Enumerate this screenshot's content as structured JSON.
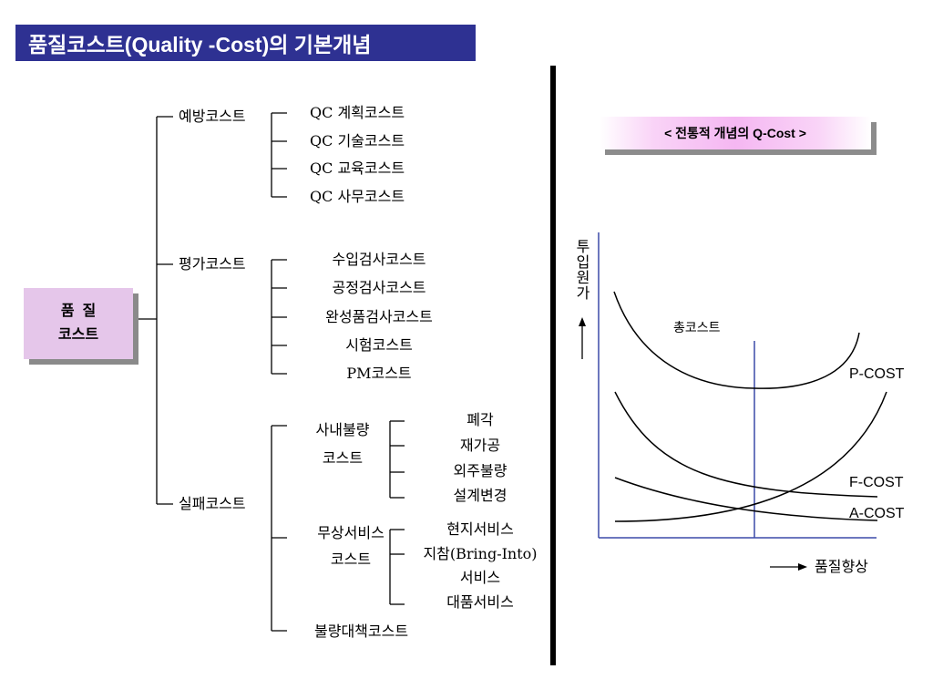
{
  "title": "품질코스트(Quality -Cost)의 기본개념",
  "tree": {
    "root": {
      "line1": "품  질",
      "line2": "코스트"
    },
    "prevention": {
      "label": "예방코스트",
      "items": [
        "QC 계획코스트",
        "QC 기술코스트",
        "QC 교육코스트",
        "QC 사무코스트"
      ]
    },
    "appraisal": {
      "label": "평가코스트",
      "items": [
        "수입검사코스트",
        "공정검사코스트",
        "완성품검사코스트",
        "시험코스트",
        "PM코스트"
      ]
    },
    "failure": {
      "label": "실패코스트",
      "internal": {
        "line1": "사내불량",
        "line2": "코스트",
        "items": [
          "폐각",
          "재가공",
          "외주불량",
          "설계변경"
        ]
      },
      "free_service": {
        "line1": "무상서비스",
        "line2": "코스트",
        "items": [
          "현지서비스",
          "지참(Bring-Into)",
          "서비스",
          "대품서비스"
        ]
      },
      "countermeasure": "불량대책코스트"
    }
  },
  "chart": {
    "title": "< 전통적 개념의 Q-Cost >",
    "y_axis_label": "투입원가",
    "x_axis_label": "품질향상",
    "total_cost_label": "총코스트",
    "series": [
      "P-COST",
      "F-COST",
      "A-COST"
    ]
  },
  "colors": {
    "title_bg": "#2e3192",
    "root_box": "#e5c6ea",
    "axis": "#3b4aa8"
  }
}
